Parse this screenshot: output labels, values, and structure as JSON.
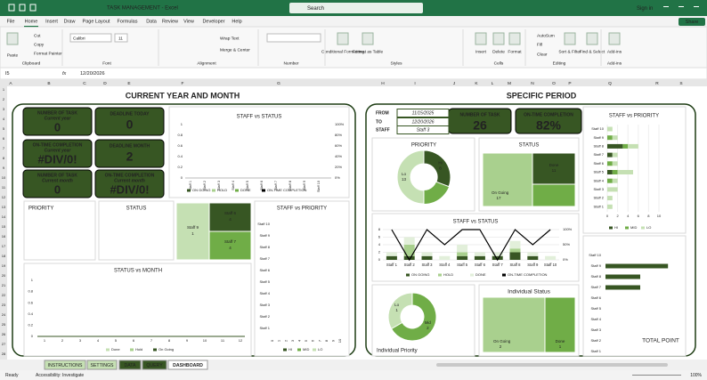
{
  "window": {
    "title": "TASK MANAGEMENT - Excel",
    "search": "Search",
    "sign_in": "Sign in",
    "share": "Share"
  },
  "menu_tabs": [
    "File",
    "Home",
    "Insert",
    "Draw",
    "Page Layout",
    "Formulas",
    "Data",
    "Review",
    "View",
    "Developer",
    "Help"
  ],
  "ribbon": {
    "buttons": [
      "Paste",
      "Cut",
      "Copy",
      "Format Painter",
      "Calibri",
      "11",
      "Wrap Text",
      "Merge & Center",
      "Conditional Formatting",
      "Format as Table",
      "Insert",
      "Delete",
      "Format",
      "AutoSum",
      "Fill",
      "Clear",
      "Sort & Filter",
      "Find & Select",
      "Add-ins"
    ],
    "groups": [
      "Clipboard",
      "Font",
      "Alignment",
      "Number",
      "Styles",
      "Cells",
      "Editing",
      "Add-ins"
    ]
  },
  "formula_bar": {
    "cell": "I5",
    "fx": "fx",
    "value": "12/20/2026"
  },
  "columns": [
    "A",
    "B",
    "C",
    "D",
    "E",
    "F",
    "G",
    "H",
    "I",
    "J",
    "K",
    "L",
    "M",
    "N",
    "O",
    "P",
    "Q",
    "R",
    "S"
  ],
  "rows": [
    1,
    2,
    3,
    4,
    5,
    6,
    7,
    8,
    9,
    10,
    11,
    12,
    13,
    14,
    15,
    16,
    17,
    18,
    19,
    20,
    21,
    22,
    23,
    24,
    25,
    26,
    27,
    28
  ],
  "left": {
    "title": "CURRENT YEAR AND MONTH",
    "kpis": [
      {
        "label": "NUMBER OF TASK",
        "sub": "Current year",
        "value": 0
      },
      {
        "label": "DEADLINE TODAY",
        "value": 0
      },
      {
        "label": "ON-TIME COMPLETION",
        "sub": "Current year",
        "value": "#DIV/0!"
      },
      {
        "label": "DEADLINE  MONTH",
        "value": 2
      },
      {
        "label": "NUMBER OF TASK",
        "sub": "Current month",
        "value": 0
      },
      {
        "label": "ON-TIME COMPLETION",
        "sub": "Current month",
        "value": "#DIV/0!"
      }
    ],
    "staff_status": {
      "title": "STAFF vs STATUS",
      "categories": [
        "Staff 1",
        "Staff 2",
        "Staff 3",
        "Staff 4",
        "Staff 5",
        "Staff 6",
        "Staff 7",
        "Staff 8",
        "Staff 9",
        "Staff 10"
      ],
      "ylim": [
        0,
        1
      ],
      "yticks": [
        0,
        0.2,
        0.4,
        0.6,
        0.8,
        1
      ],
      "y2lim": [
        0,
        100
      ],
      "y2ticks": [
        {
          "value": 0,
          "label": "0%"
        },
        {
          "value": 20,
          "label": "20%"
        },
        {
          "value": 40,
          "label": "40%"
        },
        {
          "value": 60,
          "label": "60%"
        },
        {
          "value": 80,
          "label": "80%"
        },
        {
          "value": 100,
          "label": "100%"
        }
      ],
      "legend": [
        "ON GOING",
        "HOLD",
        "DONE",
        "ON-TIME COMPLETION"
      ]
    },
    "priority": {
      "title": "PRIORITY"
    },
    "status": {
      "title": "STATUS"
    },
    "staff_treemap": [
      {
        "name": "Staff 6",
        "value": 4
      },
      {
        "name": "Staff 7",
        "value": 4
      },
      {
        "name": "Staff 9",
        "value": 1
      }
    ],
    "staff_priority": {
      "title": "STAFF vs PRIORITY",
      "categories": [
        "Staff 10",
        "Staff 9",
        "Staff 8",
        "Staff 7",
        "Staff 6",
        "Staff 5",
        "Staff 4",
        "Staff 3",
        "Staff 2",
        "Staff 1"
      ],
      "xlim": [
        0,
        10
      ],
      "xticks": [
        0,
        1,
        2,
        3,
        4,
        5,
        6,
        7,
        8,
        9,
        10
      ],
      "legend": [
        "HI",
        "MID",
        "LO"
      ]
    },
    "status_month": {
      "title": "STATUS vs MONTH",
      "ylim": [
        0,
        1
      ],
      "yticks": [
        0,
        0.2,
        0.4,
        0.6,
        0.8,
        1
      ],
      "categories": [
        1,
        2,
        3,
        4,
        5,
        6,
        7,
        8,
        9,
        10,
        11,
        12
      ],
      "legend": [
        "Done",
        "Hold",
        "On Going"
      ]
    }
  },
  "right": {
    "title": "SPECIFIC PERIOD",
    "filters": [
      {
        "label": "FROM",
        "value": "11/15/2025"
      },
      {
        "label": "TO",
        "value": "12/20/2026"
      },
      {
        "label": "STAFF",
        "value": "Staff 3"
      }
    ],
    "kpis": [
      {
        "label": "NUMBER OF TASK",
        "value": 26
      },
      {
        "label": "ON-TIME COMPLETION",
        "value": "82%"
      }
    ],
    "priority": {
      "title": "PRIORITY",
      "slices": [
        {
          "name": "Hi",
          "value": 8
        },
        {
          "name": "Lo",
          "value": 13
        }
      ]
    },
    "status": {
      "title": "STATUS",
      "items": [
        {
          "name": "On Going",
          "value": 17
        },
        {
          "name": "Done",
          "value": 11
        }
      ]
    },
    "staff_priority": {
      "title": "STAFF vs PRIORITY",
      "categories": [
        "Staff 10",
        "Staff 9",
        "Staff 8",
        "Staff 7",
        "Staff 6",
        "Staff 5",
        "Staff 4",
        "Staff 3",
        "Staff 2",
        "Staff 1"
      ],
      "xlim": [
        0,
        10
      ],
      "xticks": [
        0,
        2,
        4,
        6,
        8,
        10
      ],
      "series": [
        {
          "name": "HI",
          "color": "#375623",
          "values": [
            0,
            0,
            3,
            1,
            0,
            1,
            0,
            0,
            0,
            0
          ]
        },
        {
          "name": "MID",
          "color": "#70ad47",
          "values": [
            0,
            1,
            1,
            0,
            1,
            1,
            1,
            0,
            0,
            0
          ]
        },
        {
          "name": "LO",
          "color": "#c5e0b3",
          "values": [
            1,
            1,
            2,
            1,
            1,
            3,
            1,
            2,
            1,
            1
          ]
        }
      ]
    },
    "staff_status": {
      "title": "STAFF vs STATUS",
      "categories": [
        "Staff 1",
        "Staff 2",
        "Staff 3",
        "Staff 4",
        "Staff 5",
        "Staff 6",
        "Staff 7",
        "Staff 8",
        "Staff 9",
        "Staff 10"
      ],
      "ylim": [
        0,
        8
      ],
      "yticks": [
        0,
        2,
        4,
        6,
        8
      ],
      "y2lim": [
        0,
        100
      ],
      "y2ticks": [
        {
          "value": 0,
          "label": "0%"
        },
        {
          "value": 50,
          "label": "50%"
        },
        {
          "value": 100,
          "label": "100%"
        }
      ],
      "series": [
        {
          "name": "ON GOING",
          "color": "#375623",
          "values": [
            1,
            1,
            1,
            0,
            1,
            1,
            1,
            2,
            1,
            0
          ]
        },
        {
          "name": "HOLD",
          "color": "#a9d08e",
          "values": [
            0,
            3,
            0,
            0,
            1,
            0,
            0,
            1,
            0,
            0
          ]
        },
        {
          "name": "DONE",
          "color": "#e2efda",
          "values": [
            1,
            2,
            1,
            1,
            2,
            1,
            1,
            2,
            1,
            1
          ]
        },
        {
          "name": "ON-TIME COMPLETION",
          "color": "#000000",
          "axis": "y2",
          "values": [
            100,
            0,
            100,
            50,
            100,
            100,
            0,
            100,
            50,
            100
          ]
        }
      ]
    },
    "individual_priority": {
      "title": "Individual Priority",
      "slices": [
        {
          "name": "Lo",
          "value": 1
        },
        {
          "name": "Mid",
          "value": 2
        }
      ]
    },
    "individual_status": {
      "title": "Individual Status",
      "items": [
        {
          "name": "On Going",
          "value": 2
        },
        {
          "name": "Done",
          "value": 1
        }
      ]
    },
    "total_point": {
      "title": "TOTAL POINT",
      "categories": [
        "Staff 10",
        "Staff 9",
        "Staff 8",
        "Staff 7",
        "Staff 6",
        "Staff 5",
        "Staff 4",
        "Staff 3",
        "Staff 2",
        "Staff 1"
      ],
      "color": "#375623",
      "values": [
        0,
        9,
        5,
        5,
        0,
        0,
        0,
        0,
        0,
        0
      ]
    }
  },
  "sheet_tabs": [
    "INSTRUCTIONS",
    "SETTINGS",
    "DATA",
    "QUERY",
    "DASHBOARD"
  ],
  "status_bar": {
    "ready": "Ready",
    "accessibility": "Accessibility: Investigate",
    "zoom": "100%"
  }
}
